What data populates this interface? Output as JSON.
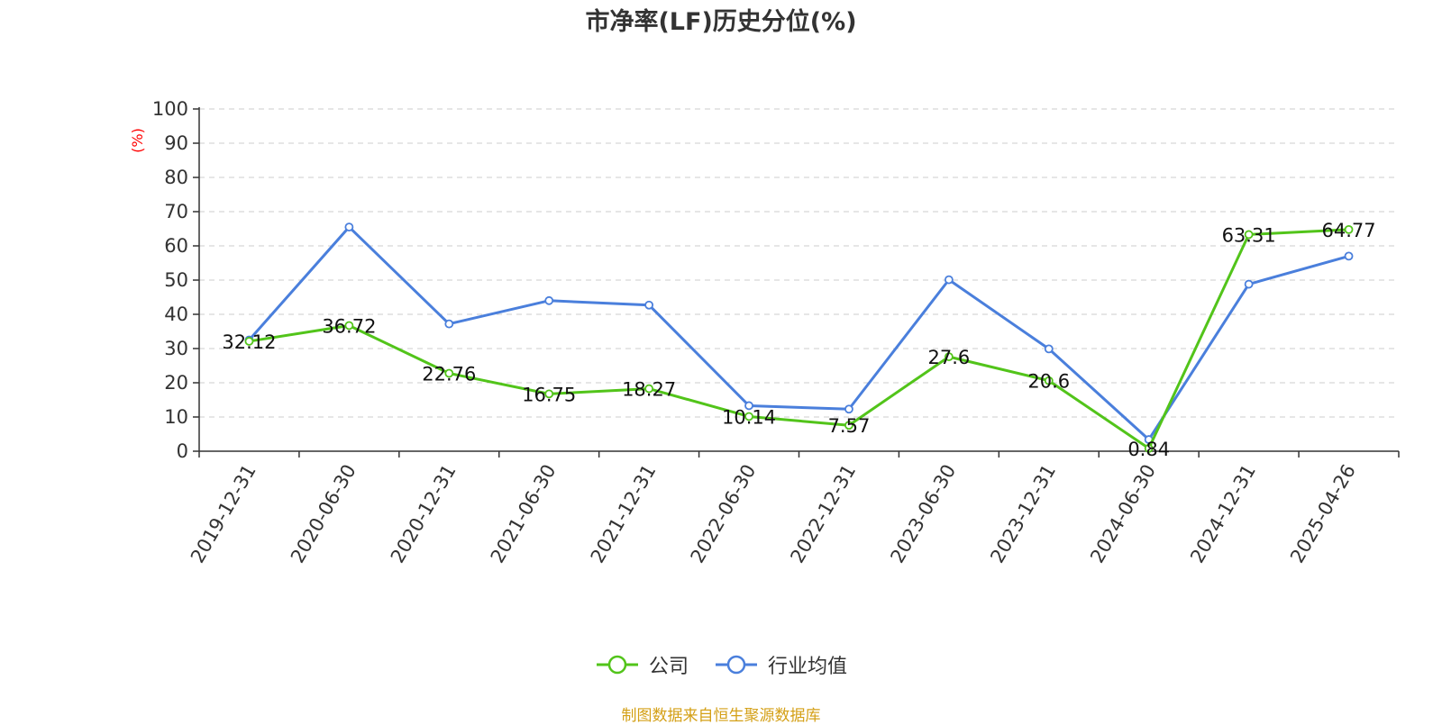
{
  "chart_data": {
    "type": "line",
    "title": "市净率(LF)历史分位(%)",
    "ylabel": "(%)",
    "xlabel": "",
    "ylim": [
      0,
      100
    ],
    "yticks": [
      0,
      10,
      20,
      30,
      40,
      50,
      60,
      70,
      80,
      90,
      100
    ],
    "grid": true,
    "legend_position": "bottom",
    "categories": [
      "2019-12-31",
      "2020-06-30",
      "2020-12-31",
      "2021-06-30",
      "2021-12-31",
      "2022-06-30",
      "2022-12-31",
      "2023-06-30",
      "2023-12-31",
      "2024-06-30",
      "2024-12-31",
      "2025-04-26"
    ],
    "series": [
      {
        "name": "公司",
        "color": "#52c41a",
        "values": [
          32.12,
          36.72,
          22.76,
          16.75,
          18.27,
          10.14,
          7.57,
          27.6,
          20.6,
          0.84,
          63.31,
          64.77
        ],
        "labels": [
          "32.12",
          "36.72",
          "22.76",
          "16.75",
          "18.27",
          "10.14",
          "7.57",
          "27.6",
          "20.6",
          "0.84",
          "63.31",
          "64.77"
        ]
      },
      {
        "name": "行业均值",
        "color": "#4a7fdc",
        "values": [
          32.5,
          65.5,
          37.2,
          44.0,
          42.7,
          13.3,
          12.3,
          50.1,
          29.9,
          3.4,
          48.8,
          57.0
        ]
      }
    ]
  },
  "source_note": "制图数据来自恒生聚源数据库"
}
